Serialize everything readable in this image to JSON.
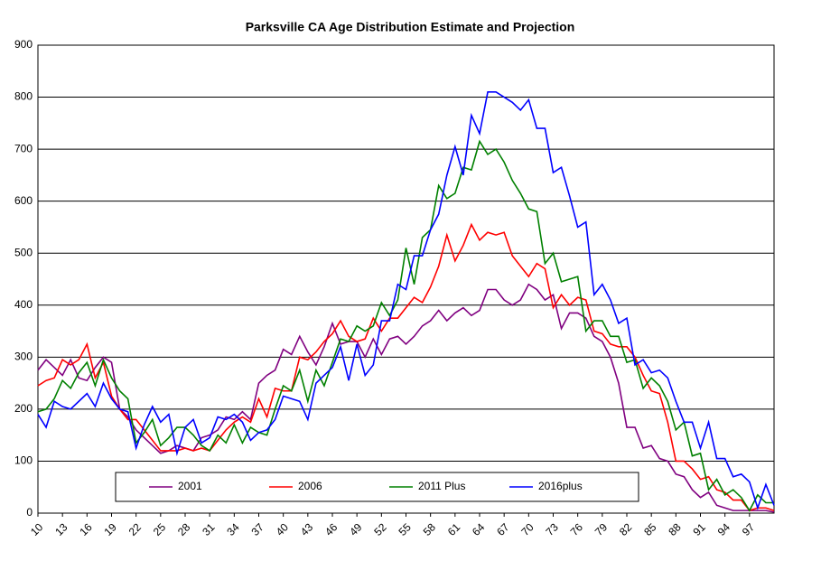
{
  "chart_data": {
    "type": "line",
    "title": "Parksville CA Age Distribution Estimate and Projection",
    "categories": [
      10,
      null,
      null,
      13,
      null,
      null,
      16,
      null,
      null,
      19,
      null,
      null,
      22,
      null,
      null,
      25,
      null,
      null,
      28,
      null,
      null,
      31,
      null,
      null,
      34,
      null,
      null,
      37,
      null,
      null,
      40,
      null,
      null,
      43,
      null,
      null,
      46,
      null,
      null,
      49,
      null,
      null,
      52,
      null,
      null,
      55,
      null,
      null,
      58,
      null,
      null,
      61,
      null,
      null,
      64,
      null,
      null,
      67,
      null,
      null,
      70,
      null,
      null,
      73,
      null,
      null,
      76,
      null,
      null,
      79,
      null,
      null,
      82,
      null,
      null,
      85,
      null,
      null,
      88,
      null,
      null,
      91,
      null,
      null,
      94,
      null,
      null,
      97,
      null,
      null,
      null
    ],
    "series": [
      {
        "name": "2001",
        "color": "#800080",
        "values": [
          275,
          295,
          280,
          265,
          295,
          260,
          255,
          280,
          300,
          290,
          200,
          185,
          160,
          145,
          130,
          115,
          120,
          130,
          125,
          120,
          145,
          150,
          160,
          185,
          180,
          195,
          180,
          250,
          265,
          275,
          315,
          305,
          340,
          310,
          285,
          320,
          365,
          325,
          330,
          330,
          300,
          335,
          305,
          335,
          340,
          325,
          340,
          360,
          370,
          390,
          370,
          385,
          395,
          380,
          390,
          430,
          430,
          410,
          400,
          410,
          440,
          430,
          410,
          420,
          355,
          385,
          385,
          375,
          340,
          330,
          300,
          250,
          165,
          165,
          125,
          130,
          105,
          100,
          75,
          70,
          45,
          30,
          40,
          15,
          10,
          5,
          5,
          5,
          5,
          5,
          2
        ]
      },
      {
        "name": "2006",
        "color": "#ff0000",
        "values": [
          245,
          255,
          260,
          295,
          285,
          295,
          325,
          260,
          290,
          225,
          200,
          180,
          180,
          160,
          140,
          120,
          120,
          120,
          125,
          120,
          125,
          120,
          140,
          160,
          175,
          185,
          175,
          220,
          185,
          240,
          235,
          235,
          300,
          295,
          310,
          330,
          345,
          370,
          340,
          330,
          335,
          375,
          350,
          375,
          375,
          395,
          415,
          405,
          435,
          475,
          535,
          485,
          515,
          555,
          525,
          540,
          535,
          540,
          495,
          475,
          455,
          480,
          470,
          395,
          420,
          400,
          415,
          410,
          350,
          345,
          325,
          320,
          320,
          300,
          265,
          235,
          230,
          175,
          100,
          100,
          85,
          65,
          70,
          45,
          40,
          25,
          25,
          5,
          10,
          10,
          5
        ]
      },
      {
        "name": "2011 Plus",
        "color": "#008000",
        "values": [
          195,
          200,
          220,
          255,
          240,
          270,
          290,
          245,
          295,
          260,
          235,
          220,
          135,
          155,
          180,
          130,
          145,
          165,
          165,
          150,
          130,
          120,
          150,
          135,
          170,
          135,
          165,
          155,
          150,
          200,
          245,
          235,
          275,
          215,
          275,
          245,
          290,
          335,
          330,
          360,
          350,
          360,
          405,
          380,
          410,
          510,
          440,
          530,
          545,
          630,
          605,
          615,
          665,
          660,
          715,
          690,
          700,
          675,
          640,
          615,
          585,
          580,
          480,
          500,
          445,
          450,
          455,
          350,
          370,
          370,
          340,
          340,
          290,
          295,
          240,
          260,
          245,
          215,
          160,
          175,
          110,
          115,
          45,
          65,
          35,
          45,
          30,
          5,
          35,
          20,
          20
        ]
      },
      {
        "name": "2016plus",
        "color": "#0000ff",
        "values": [
          190,
          165,
          215,
          205,
          200,
          215,
          230,
          205,
          250,
          220,
          200,
          195,
          125,
          170,
          205,
          175,
          190,
          115,
          165,
          180,
          135,
          145,
          185,
          180,
          190,
          175,
          140,
          155,
          160,
          180,
          225,
          220,
          215,
          180,
          250,
          265,
          280,
          320,
          255,
          325,
          265,
          285,
          370,
          370,
          440,
          430,
          495,
          495,
          545,
          575,
          650,
          705,
          650,
          765,
          730,
          810,
          810,
          800,
          790,
          775,
          795,
          740,
          740,
          655,
          665,
          610,
          550,
          560,
          420,
          440,
          410,
          365,
          375,
          285,
          295,
          270,
          275,
          260,
          215,
          175,
          175,
          125,
          175,
          105,
          105,
          70,
          75,
          60,
          10,
          55,
          15
        ]
      }
    ],
    "ylim": [
      0,
      900
    ],
    "yticks": [
      0,
      100,
      200,
      300,
      400,
      500,
      600,
      700,
      800,
      900
    ],
    "grid": true
  }
}
